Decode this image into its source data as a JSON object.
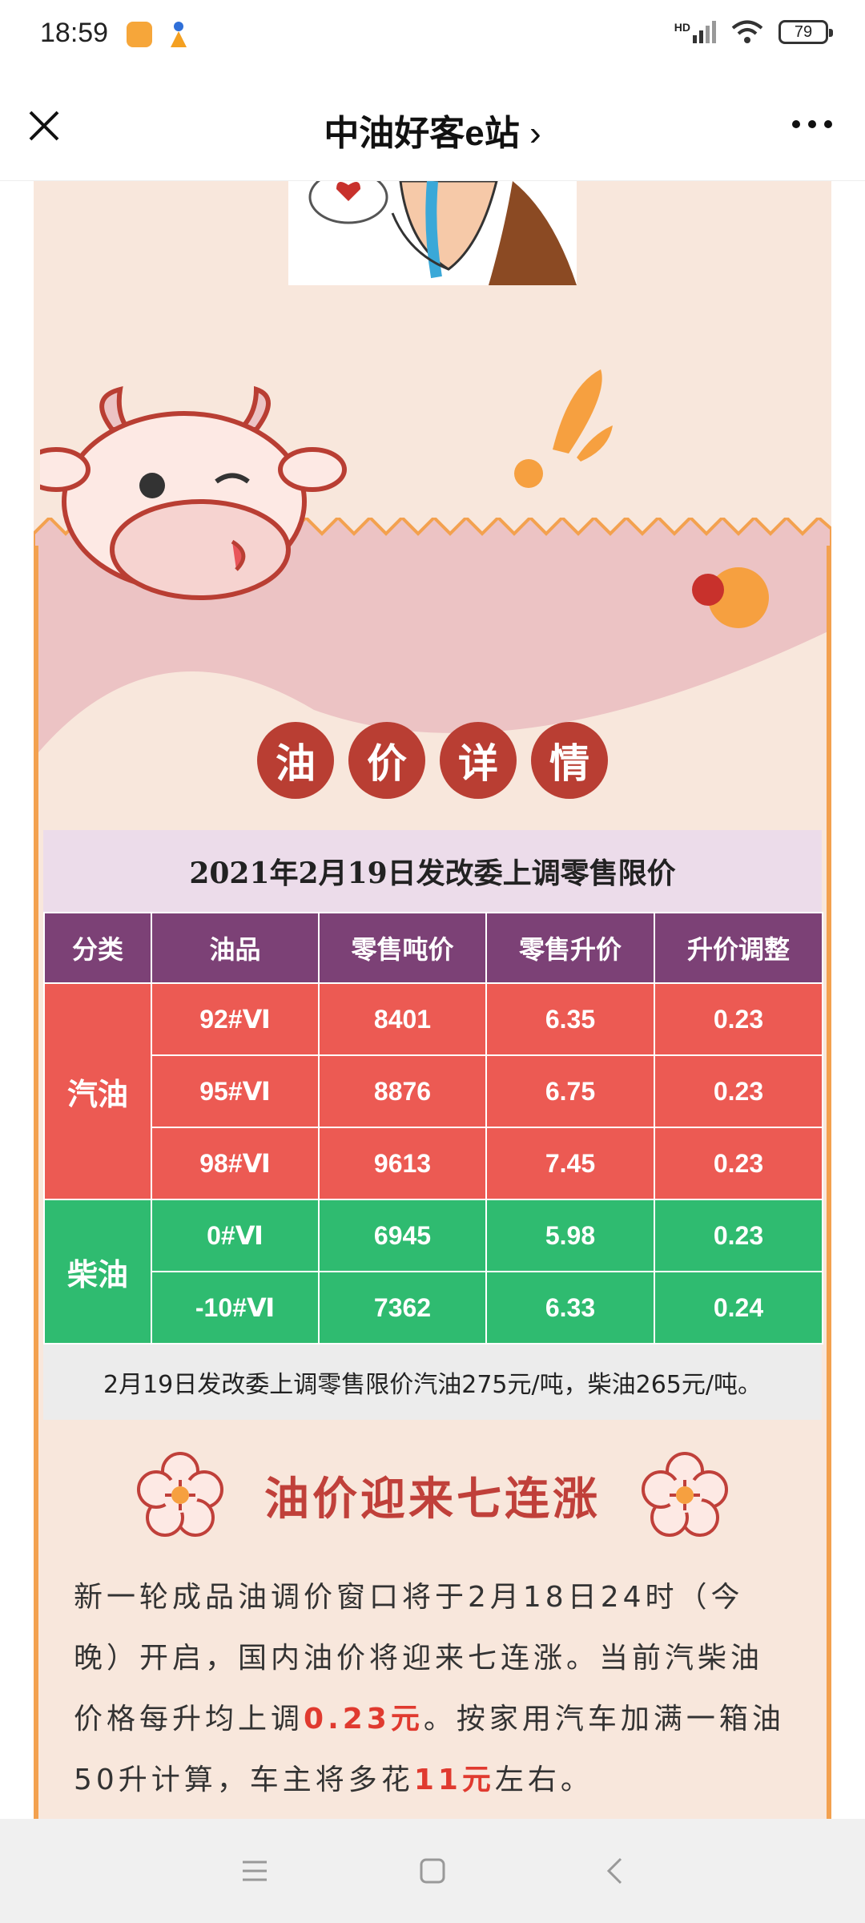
{
  "status_bar": {
    "time": "18:59",
    "network": "HD",
    "battery": "79"
  },
  "nav": {
    "title": "中油好客e站"
  },
  "section_title_chars": [
    "油",
    "价",
    "详",
    "情"
  ],
  "table": {
    "title": "2021年2月19日发改委上调零售限价",
    "headers": [
      "分类",
      "油品",
      "零售吨价",
      "零售升价",
      "升价调整"
    ],
    "gasoline_label": "汽油",
    "diesel_label": "柴油",
    "gasoline_rows": [
      [
        "92#Ⅵ",
        "8401",
        "6.35",
        "0.23"
      ],
      [
        "95#Ⅵ",
        "8876",
        "6.75",
        "0.23"
      ],
      [
        "98#Ⅵ",
        "9613",
        "7.45",
        "0.23"
      ]
    ],
    "diesel_rows": [
      [
        "0#Ⅵ",
        "6945",
        "5.98",
        "0.23"
      ],
      [
        "-10#Ⅵ",
        "7362",
        "6.33",
        "0.24"
      ]
    ],
    "note": "2月19日发改委上调零售限价汽油275元/吨，柴油265元/吨。"
  },
  "article": {
    "heading": "油价迎来七连涨",
    "p1": "新一轮成品油调价窗口将于2月18日24时（今晚）开启，国内油价将迎来七连涨。当前汽柴油价格每升均上调",
    "hl1": "0.23元",
    "p2": "。按家用汽车加满一箱油50升计算，车主将多花",
    "hl2": "11元",
    "p3": "左右。"
  },
  "colors": {
    "accent": "#b93e33",
    "gasoline": "#ec5a53",
    "diesel": "#2fbb70",
    "header": "#7c4176",
    "border": "#f3a14f"
  }
}
